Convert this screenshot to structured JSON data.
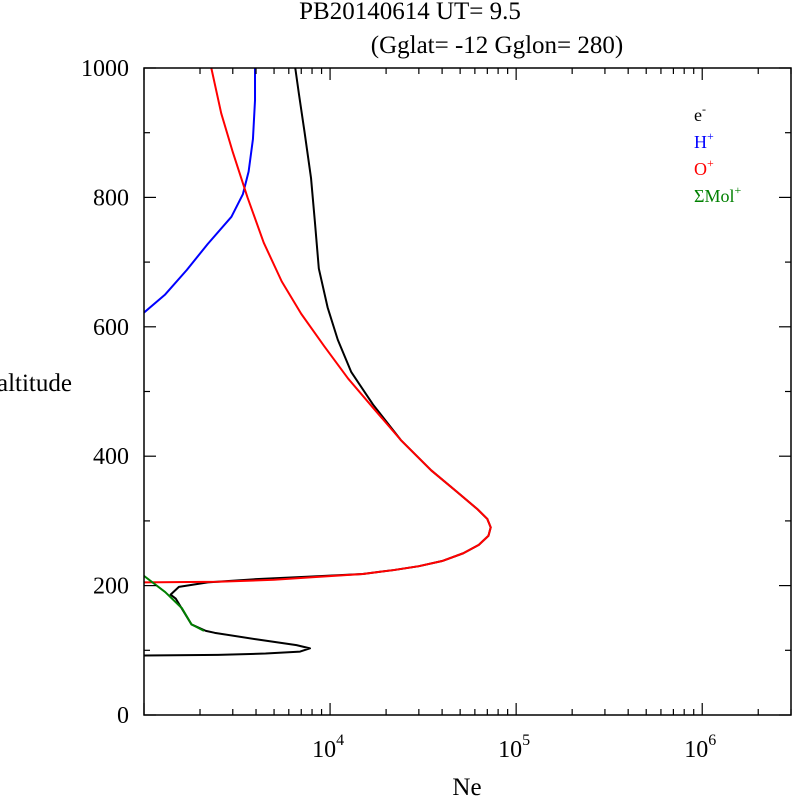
{
  "chart_data": {
    "type": "line",
    "title": "PB20140614   UT=  9.5",
    "subtitle": "(Gglat= -12   Gglon=  280)",
    "xlabel": "Ne",
    "ylabel": "altitude",
    "xscale": "log",
    "xlim": [
      1000,
      3000000
    ],
    "ylim": [
      0,
      1000
    ],
    "yticks": [
      "0",
      "200",
      "400",
      "600",
      "800",
      "1000"
    ],
    "xticks": [
      {
        "base": "10",
        "exp": "4"
      },
      {
        "base": "10",
        "exp": "5"
      },
      {
        "base": "10",
        "exp": "6"
      }
    ],
    "grid": false,
    "legend_position": "top-right",
    "series": [
      {
        "name": "e",
        "name_sup": "-",
        "color": "#000000",
        "points": [
          [
            1000,
            92
          ],
          [
            2500,
            93
          ],
          [
            4500,
            95
          ],
          [
            6900,
            98
          ],
          [
            7800,
            103
          ],
          [
            6600,
            108
          ],
          [
            4000,
            117
          ],
          [
            2400,
            127
          ],
          [
            2150,
            130
          ],
          [
            1800,
            140
          ],
          [
            1480,
            180
          ],
          [
            1390,
            186
          ],
          [
            1540,
            198
          ],
          [
            2200,
            205
          ],
          [
            4000,
            210
          ],
          [
            8000,
            214
          ],
          [
            15000,
            218
          ],
          [
            22000,
            224
          ],
          [
            30000,
            230
          ],
          [
            40000,
            238
          ],
          [
            52000,
            250
          ],
          [
            63000,
            263
          ],
          [
            71000,
            277
          ],
          [
            73000,
            290
          ],
          [
            70000,
            303
          ],
          [
            62000,
            318
          ],
          [
            48000,
            345
          ],
          [
            35000,
            378
          ],
          [
            24000,
            425
          ],
          [
            17000,
            480
          ],
          [
            13000,
            530
          ],
          [
            11000,
            580
          ],
          [
            9700,
            630
          ],
          [
            8700,
            690
          ],
          [
            8300,
            760
          ],
          [
            7900,
            830
          ],
          [
            7300,
            900
          ],
          [
            6800,
            960
          ],
          [
            6500,
            1000
          ]
        ]
      },
      {
        "name": "H",
        "name_sup": "+",
        "color": "#0000ff",
        "points": [
          [
            1000,
            622
          ],
          [
            1300,
            650
          ],
          [
            1700,
            688
          ],
          [
            2200,
            728
          ],
          [
            2950,
            770
          ],
          [
            3400,
            805
          ],
          [
            3650,
            840
          ],
          [
            3850,
            890
          ],
          [
            3950,
            950
          ],
          [
            3950,
            1000
          ]
        ]
      },
      {
        "name": "O",
        "name_sup": "+",
        "color": "#ff0000",
        "points": [
          [
            1000,
            205
          ],
          [
            2500,
            206
          ],
          [
            5000,
            209
          ],
          [
            8000,
            213
          ],
          [
            15000,
            218
          ],
          [
            22000,
            224
          ],
          [
            30000,
            230
          ],
          [
            40000,
            238
          ],
          [
            52000,
            250
          ],
          [
            63000,
            263
          ],
          [
            71000,
            277
          ],
          [
            73000,
            290
          ],
          [
            70000,
            303
          ],
          [
            62000,
            318
          ],
          [
            48000,
            345
          ],
          [
            35000,
            378
          ],
          [
            24000,
            425
          ],
          [
            17000,
            475
          ],
          [
            12500,
            520
          ],
          [
            9300,
            570
          ],
          [
            7000,
            620
          ],
          [
            5500,
            670
          ],
          [
            4400,
            730
          ],
          [
            3600,
            800
          ],
          [
            3000,
            870
          ],
          [
            2600,
            930
          ],
          [
            2300,
            1000
          ]
        ]
      },
      {
        "name": "ΣMol",
        "name_sup": "+",
        "color": "#008000",
        "points": [
          [
            1000,
            215
          ],
          [
            1300,
            190
          ],
          [
            1600,
            165
          ],
          [
            1800,
            140
          ],
          [
            2100,
            130
          ]
        ]
      }
    ]
  }
}
